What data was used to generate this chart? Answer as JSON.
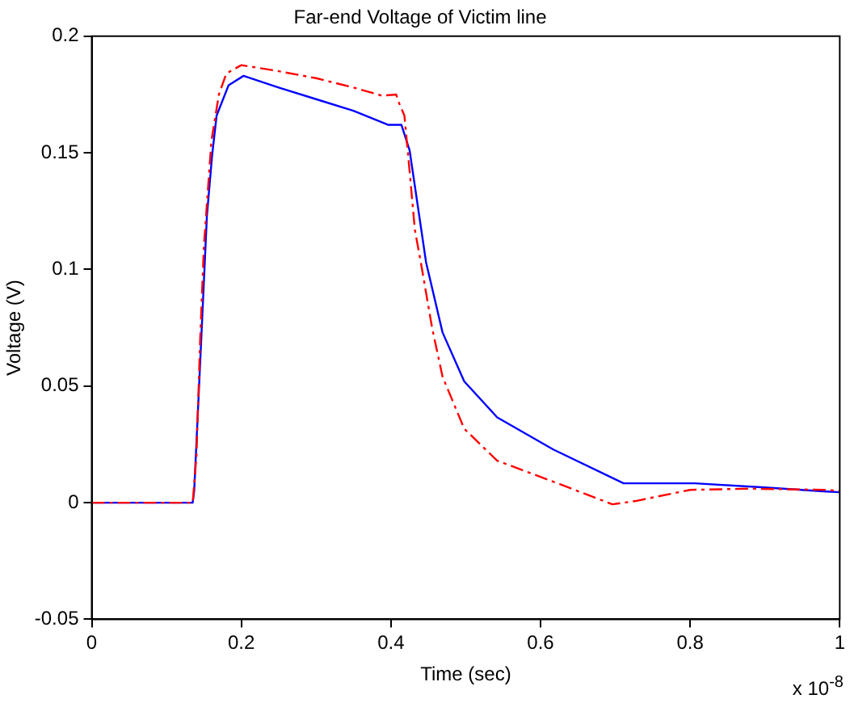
{
  "chart_data": {
    "type": "line",
    "title": "Far-end Voltage of Victim line",
    "xlabel": "Time (sec)",
    "ylabel": "Voltage (V)",
    "annotations": [
      "x 10$^{-8}$"
    ],
    "xlim": [
      0,
      1
    ],
    "xticks": [
      0,
      0.2,
      0.4,
      0.6,
      0.8,
      1
    ],
    "ylim": [
      -0.05,
      0.2
    ],
    "yticks": [
      -0.05,
      0,
      0.05,
      0.1,
      0.15,
      0.2
    ],
    "grid": false,
    "legend": false,
    "marker": "none",
    "series": [
      {
        "color": "#ff0000",
        "line_style": "dashed",
        "x": [
          0,
          0.135,
          0.14,
          0.145,
          0.15,
          0.16,
          0.17,
          0.18,
          0.2,
          0.25,
          0.3,
          0.35,
          0.388,
          0.407,
          0.41,
          0.418,
          0.425,
          0.432,
          0.44,
          0.455,
          0.469,
          0.498,
          0.542,
          0.617,
          0.696,
          0.727,
          0.8,
          0.88,
          0.982,
          1
        ],
        "values": [
          0,
          0,
          0.02,
          0.07,
          0.11,
          0.155,
          0.175,
          0.184,
          0.1876,
          0.185,
          0.182,
          0.178,
          0.1745,
          0.175,
          0.172,
          0.166,
          0.142,
          0.117,
          0.103,
          0.075,
          0.054,
          0.0317,
          0.018,
          0.009,
          -0.0007,
          0.0007,
          0.0055,
          0.006,
          0.0055,
          0.005
        ]
      },
      {
        "color": "#0000ff",
        "line_style": "solid",
        "x": [
          0,
          0.135,
          0.137,
          0.145,
          0.154,
          0.161,
          0.167,
          0.183,
          0.203,
          0.25,
          0.3,
          0.35,
          0.396,
          0.414,
          0.425,
          0.447,
          0.469,
          0.498,
          0.542,
          0.617,
          0.711,
          0.806,
          0.9,
          0.982,
          1
        ],
        "values": [
          0,
          0,
          0.005,
          0.06,
          0.123,
          0.149,
          0.166,
          0.179,
          0.183,
          0.178,
          0.173,
          0.168,
          0.162,
          0.162,
          0.151,
          0.103,
          0.073,
          0.052,
          0.0366,
          0.0228,
          0.0083,
          0.0083,
          0.0065,
          0.0048,
          0.0045
        ]
      }
    ]
  }
}
